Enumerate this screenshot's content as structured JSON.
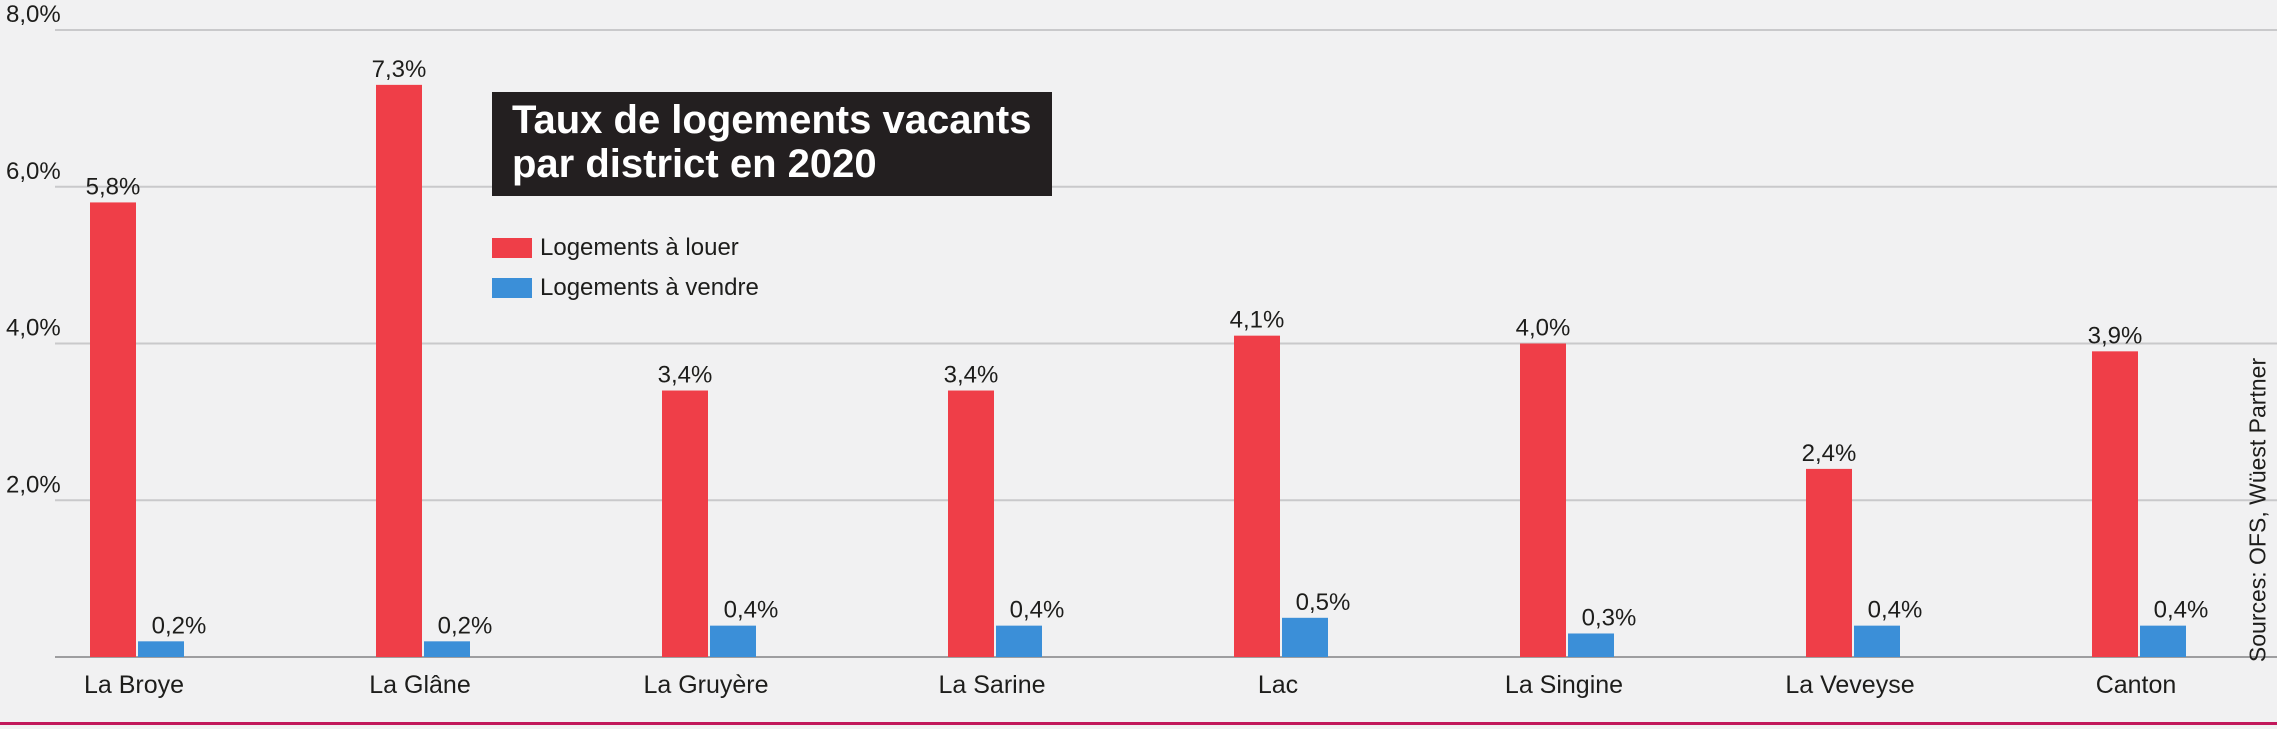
{
  "chart_data": {
    "type": "bar",
    "title_lines": [
      "Taux de logements vacants",
      "par district en 2020"
    ],
    "categories": [
      "La Broye",
      "La Glâne",
      "La Gruyère",
      "La Sarine",
      "Lac",
      "La Singine",
      "La Veveyse",
      "Canton"
    ],
    "series": [
      {
        "name": "Logements à louer",
        "color": "#ef3e48",
        "values": [
          5.8,
          7.3,
          3.4,
          3.4,
          4.1,
          4.0,
          2.4,
          3.9
        ],
        "labels": [
          "5,8%",
          "7,3%",
          "3,4%",
          "3,4%",
          "4,1%",
          "4,0%",
          "2,4%",
          "3,9%"
        ]
      },
      {
        "name": "Logements à vendre",
        "color": "#3b8fd8",
        "values": [
          0.2,
          0.2,
          0.4,
          0.4,
          0.5,
          0.3,
          0.4,
          0.4
        ],
        "labels": [
          "0,2%",
          "0,2%",
          "0,4%",
          "0,4%",
          "0,5%",
          "0,3%",
          "0,4%",
          "0,4%"
        ]
      }
    ],
    "ylim": [
      0,
      8
    ],
    "yticks": [
      2,
      4,
      6,
      8
    ],
    "ytick_labels": [
      "2,0%",
      "4,0%",
      "6,0%",
      "8,0%"
    ],
    "grid": true,
    "legend_position": "top-left",
    "source": "Sources: OFS, Wüest Partner"
  }
}
